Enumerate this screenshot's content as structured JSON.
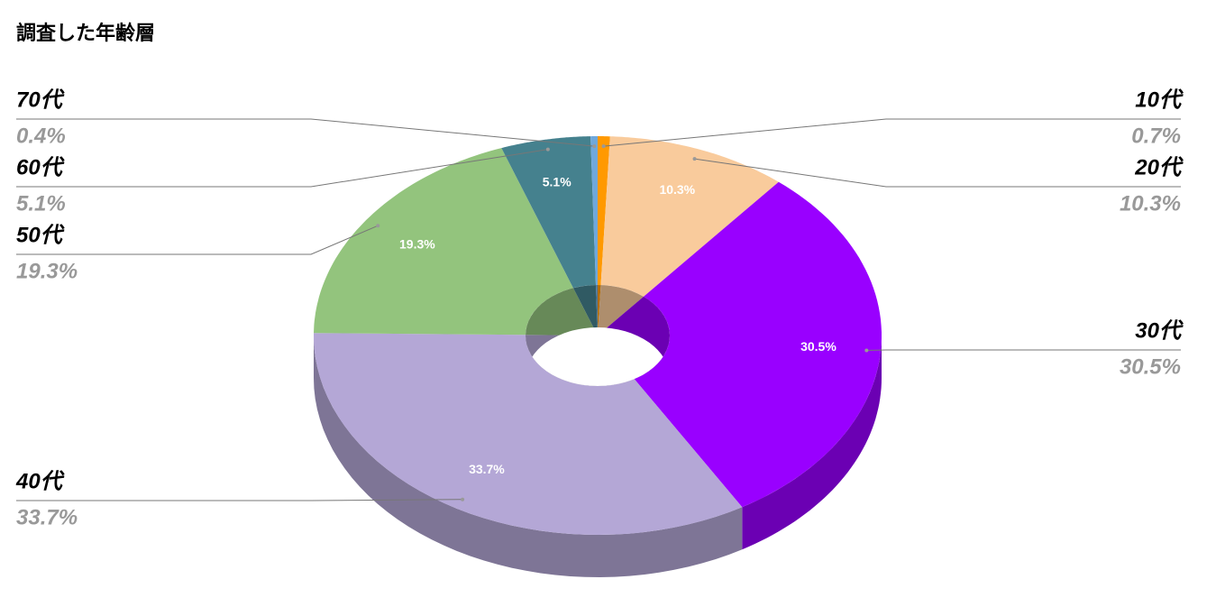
{
  "chart_data": {
    "type": "pie",
    "title": "調査した年齢層",
    "categories": [
      "10代",
      "20代",
      "30代",
      "40代",
      "50代",
      "60代",
      "70代"
    ],
    "values": [
      0.7,
      10.3,
      30.5,
      33.7,
      19.3,
      5.1,
      0.4
    ],
    "value_labels": [
      "0.7%",
      "10.3%",
      "30.5%",
      "33.7%",
      "19.3%",
      "5.1%",
      "0.4%"
    ],
    "colors": [
      "#ff9900",
      "#f9cb9c",
      "#9900ff",
      "#b4a7d6",
      "#93c47d",
      "#45818e",
      "#6fa8dc"
    ]
  }
}
